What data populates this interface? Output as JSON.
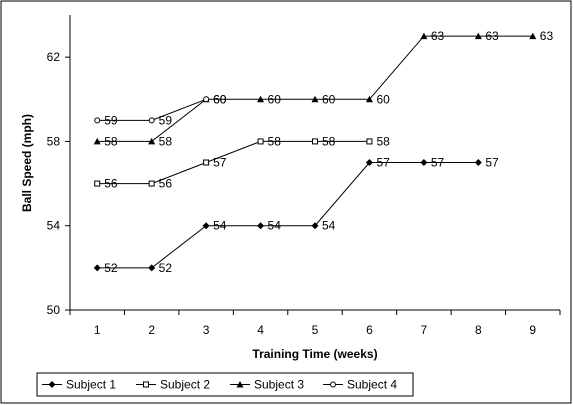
{
  "chart_data": {
    "type": "line",
    "title": "",
    "xlabel": "Training Time (weeks)",
    "ylabel": "Ball Speed (mph)",
    "x": [
      1,
      2,
      3,
      4,
      5,
      6,
      7,
      8,
      9
    ],
    "xlim": [
      0.5,
      9.5
    ],
    "ylim": [
      50,
      64
    ],
    "yticks": [
      50,
      54,
      58,
      62
    ],
    "grid": false,
    "legend": "bottom",
    "series": [
      {
        "name": "Subject 1",
        "marker": "diamond",
        "x": [
          1,
          2,
          3,
          4,
          5,
          6,
          7,
          8
        ],
        "values": [
          52,
          52,
          54,
          54,
          54,
          57,
          57,
          57
        ]
      },
      {
        "name": "Subject 2",
        "marker": "square-open",
        "x": [
          1,
          2,
          3,
          4,
          5,
          6
        ],
        "values": [
          56,
          56,
          57,
          58,
          58,
          58
        ]
      },
      {
        "name": "Subject 3",
        "marker": "triangle",
        "x": [
          1,
          2,
          3,
          4,
          5,
          6,
          7,
          8,
          9
        ],
        "values": [
          58,
          58,
          60,
          60,
          60,
          60,
          63,
          63,
          63
        ]
      },
      {
        "name": "Subject 4",
        "marker": "circle-open",
        "x": [
          1,
          2,
          3
        ],
        "values": [
          59,
          59,
          60
        ]
      }
    ]
  }
}
